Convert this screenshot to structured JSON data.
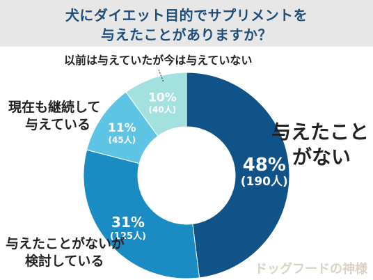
{
  "title": {
    "line1": "犬にダイエット目的でサプリメントを",
    "line2": "与えたことがありますか？"
  },
  "chart_data": {
    "type": "pie",
    "title": "犬にダイエット目的でサプリメントを与えたことがありますか？",
    "slices": [
      {
        "label": "与えたことがない",
        "percent": 48,
        "count": 190,
        "percent_text": "48%",
        "count_text": "(190人)",
        "color": "#0f5389"
      },
      {
        "label": "与えたことがないが検討している",
        "percent": 31,
        "count": 125,
        "percent_text": "31%",
        "count_text": "(125人)",
        "color": "#1b8bc3"
      },
      {
        "label": "現在も継続して与えている",
        "percent": 11,
        "count": 45,
        "percent_text": "11%",
        "count_text": "(45人)",
        "color": "#5ec4e3"
      },
      {
        "label": "以前は与えていたが今は与えていない",
        "percent": 10,
        "count": 40,
        "percent_text": "10%",
        "count_text": "(40人)",
        "color": "#a3e1df"
      }
    ]
  },
  "labels": {
    "never_1": "与えたこと",
    "never_2": "がない",
    "considering_1": "与えたことがないが",
    "considering_2": "検討している",
    "current_1": "現在も継続して",
    "current_2": "与えている",
    "past": "以前は与えていたが今は与えていない"
  },
  "watermark": "ドッグフードの神様"
}
